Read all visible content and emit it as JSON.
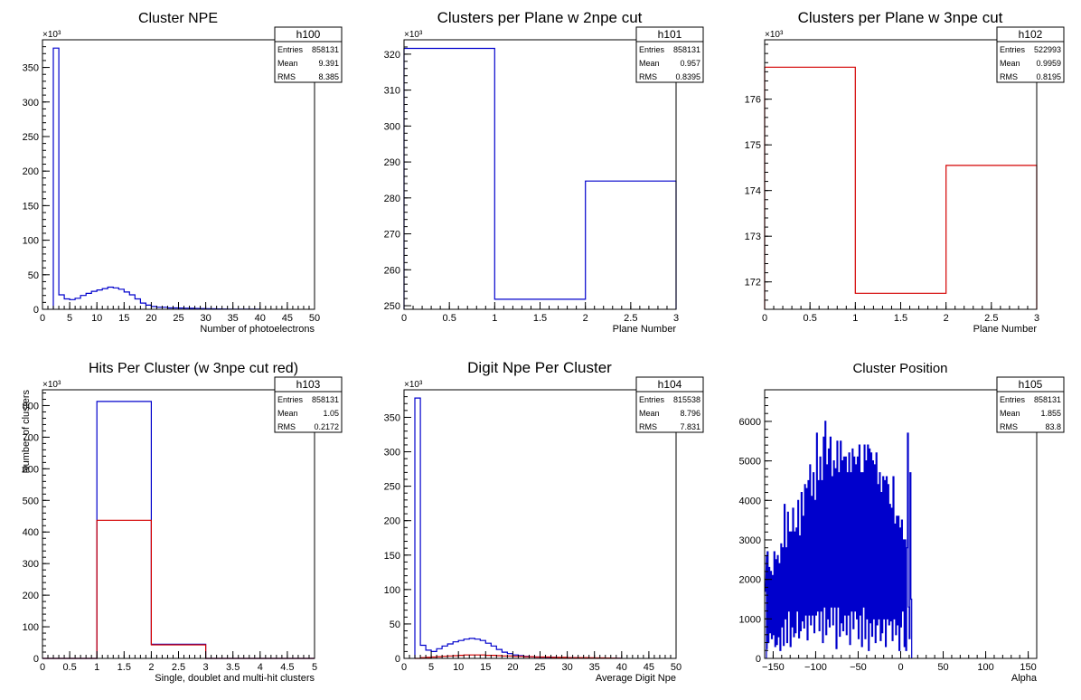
{
  "colors": {
    "primary": "#0000cc",
    "secondary": "#d40000",
    "frame": "#000000"
  },
  "chart_data": [
    {
      "type": "histogram",
      "title": "Cluster NPE",
      "xlabel": "Number of photoelectrons",
      "ylabel": "",
      "exponent_label": "×10³",
      "xlim": [
        0,
        50
      ],
      "ylim": [
        0,
        390
      ],
      "xticks": [
        "0",
        "5",
        "10",
        "15",
        "20",
        "25",
        "30",
        "35",
        "40",
        "45",
        "50"
      ],
      "yticks": [
        "0",
        "50",
        "100",
        "150",
        "200",
        "250",
        "300",
        "350"
      ],
      "stats": {
        "name": "h100",
        "rows": [
          [
            "Entries",
            "858131"
          ],
          [
            "Mean",
            "9.391"
          ],
          [
            "RMS",
            "8.385"
          ]
        ]
      },
      "series": [
        {
          "color": "primary",
          "bin_start": 2,
          "bin_width": 1,
          "values": [
            378,
            21,
            15,
            14,
            16,
            20,
            23,
            26,
            28,
            30,
            32,
            31,
            29,
            25,
            21,
            15,
            9,
            6,
            4,
            3,
            3,
            2,
            2,
            1.8,
            1.6,
            1.4,
            1.2,
            1,
            0.8,
            0.6,
            0.5,
            0.4,
            0.3,
            0.2,
            0.2,
            0.1,
            0.1,
            0.1
          ]
        }
      ]
    },
    {
      "type": "histogram",
      "title": "Clusters per Plane w 2npe cut",
      "xlabel": "Plane Number",
      "ylabel": "",
      "exponent_label": "×10³",
      "xlim": [
        0,
        3
      ],
      "ylim": [
        249,
        324
      ],
      "xticks": [
        "0",
        "0.5",
        "1",
        "1.5",
        "2",
        "2.5",
        "3"
      ],
      "yticks": [
        "250",
        "260",
        "270",
        "280",
        "290",
        "300",
        "310",
        "320"
      ],
      "stats": {
        "name": "h101",
        "rows": [
          [
            "Entries",
            "858131"
          ],
          [
            "Mean",
            "0.957"
          ],
          [
            "RMS",
            "0.8395"
          ]
        ]
      },
      "series": [
        {
          "color": "primary",
          "bin_start": 0,
          "bin_width": 1,
          "values": [
            321.6,
            251.8,
            284.7
          ]
        }
      ]
    },
    {
      "type": "histogram",
      "title": "Clusters per Plane w 3npe cut",
      "xlabel": "Plane Number",
      "ylabel": "",
      "exponent_label": "×10³",
      "xlim": [
        0,
        3
      ],
      "ylim": [
        171.4,
        177.3
      ],
      "xticks": [
        "0",
        "0.5",
        "1",
        "1.5",
        "2",
        "2.5",
        "3"
      ],
      "yticks": [
        "172",
        "173",
        "174",
        "175",
        "176"
      ],
      "stats": {
        "name": "h102",
        "rows": [
          [
            "Entries",
            "522993"
          ],
          [
            "Mean",
            "0.9959"
          ],
          [
            "RMS",
            "0.8195"
          ]
        ]
      },
      "series": [
        {
          "color": "secondary",
          "bin_start": 0,
          "bin_width": 1,
          "values": [
            176.7,
            171.75,
            174.55
          ]
        }
      ]
    },
    {
      "type": "histogram",
      "title": "Hits Per Cluster (w 3npe cut red)",
      "xlabel": "Single, doublet and multi-hit clusters",
      "ylabel": "Number of clusters",
      "exponent_label": "×10³",
      "xlim": [
        0,
        5
      ],
      "ylim": [
        0,
        850
      ],
      "xticks": [
        "0",
        "0.5",
        "1",
        "1.5",
        "2",
        "2.5",
        "3",
        "3.5",
        "4",
        "4.5",
        "5"
      ],
      "yticks": [
        "0",
        "100",
        "200",
        "300",
        "400",
        "500",
        "600",
        "700",
        "800"
      ],
      "stats": {
        "name": "h103",
        "rows": [
          [
            "Entries",
            "858131"
          ],
          [
            "Mean",
            "1.05"
          ],
          [
            "RMS",
            "0.2172"
          ]
        ]
      },
      "series": [
        {
          "color": "primary",
          "bin_start": 0,
          "bin_width": 1,
          "values": [
            0,
            813,
            45,
            0,
            0
          ]
        },
        {
          "color": "secondary",
          "bin_start": 0,
          "bin_width": 1,
          "values": [
            0,
            437,
            43,
            0,
            0
          ]
        }
      ]
    },
    {
      "type": "histogram",
      "title": "Digit Npe Per Cluster",
      "xlabel": "Average Digit Npe",
      "ylabel": "",
      "exponent_label": "×10³",
      "xlim": [
        0,
        50
      ],
      "ylim": [
        0,
        390
      ],
      "xticks": [
        "0",
        "5",
        "10",
        "15",
        "20",
        "25",
        "30",
        "35",
        "40",
        "45",
        "50"
      ],
      "yticks": [
        "0",
        "50",
        "100",
        "150",
        "200",
        "250",
        "300",
        "350"
      ],
      "stats": {
        "name": "h104",
        "rows": [
          [
            "Entries",
            "815538"
          ],
          [
            "Mean",
            "8.796"
          ],
          [
            "RMS",
            "7.831"
          ]
        ]
      },
      "series": [
        {
          "color": "primary",
          "bin_start": 2,
          "bin_width": 1,
          "values": [
            378,
            19,
            12,
            10,
            14,
            18,
            21,
            24,
            26,
            28,
            29,
            28,
            26,
            22,
            18,
            13,
            9,
            7,
            5,
            4,
            3,
            2.5,
            2,
            1.8,
            1.6,
            1.4,
            1.2,
            1,
            0.8,
            0.6,
            0.5,
            0.4,
            0.3,
            0.2,
            0.2,
            0.1,
            0.1,
            0.1
          ]
        },
        {
          "color": "secondary",
          "bin_start": 2,
          "bin_width": 1,
          "values": [
            0,
            1,
            1.5,
            2,
            2.5,
            3,
            3.5,
            4,
            4.5,
            5,
            5,
            5,
            5,
            4.5,
            4.5,
            4,
            3.5,
            3.5,
            3,
            3,
            2.5,
            2.5,
            2,
            2,
            2,
            1.5,
            1.5,
            1.5,
            1,
            1,
            1,
            1,
            0.8,
            0.7,
            0.6,
            0.5,
            0.4,
            0.3
          ]
        }
      ]
    },
    {
      "type": "histogram",
      "title": "Cluster Position",
      "xlabel": "Alpha",
      "ylabel": "",
      "exponent_label": "",
      "xlim": [
        -160,
        160
      ],
      "ylim": [
        0,
        6800
      ],
      "xticks": [
        "−150",
        "−100",
        "−50",
        "0",
        "50",
        "100",
        "150"
      ],
      "xtick_values": [
        -150,
        -100,
        -50,
        0,
        50,
        100,
        150
      ],
      "yticks": [
        "0",
        "1000",
        "2000",
        "3000",
        "4000",
        "5000",
        "6000"
      ],
      "stats": {
        "name": "h105",
        "rows": [
          [
            "Entries",
            "858131"
          ],
          [
            "Mean",
            "1.855"
          ],
          [
            "RMS",
            "83.8"
          ]
        ]
      },
      "series": [
        {
          "color": "primary",
          "bin_start": -160,
          "bin_width": 1,
          "values": [
            1700,
            2600,
            250,
            2700,
            400,
            2300,
            650,
            2200,
            500,
            2100,
            600,
            2700,
            300,
            2500,
            350,
            2600,
            550,
            2400,
            200,
            2900,
            800,
            2800,
            330,
            3900,
            1000,
            2800,
            400,
            3700,
            1200,
            3200,
            300,
            3200,
            800,
            3800,
            550,
            3200,
            650,
            3300,
            1200,
            4000,
            520,
            3100,
            700,
            4200,
            950,
            3600,
            770,
            4400,
            1100,
            4300,
            470,
            4500,
            1100,
            4900,
            850,
            4100,
            1100,
            4700,
            650,
            4000,
            1100,
            5700,
            1200,
            4500,
            700,
            5100,
            1200,
            4500,
            400,
            5600,
            1300,
            6000,
            600,
            4900,
            1000,
            5300,
            800,
            5600,
            1300,
            4600,
            850,
            5000,
            1300,
            4800,
            250,
            5500,
            1300,
            4700,
            560,
            5500,
            900,
            5000,
            700,
            5100,
            1100,
            5100,
            600,
            4700,
            1100,
            5200,
            350,
            4700,
            1200,
            5300,
            750,
            5100,
            1200,
            4900,
            1000,
            5100,
            500,
            5400,
            1100,
            4700,
            300,
            4700,
            1300,
            5400,
            500,
            5000,
            1000,
            5400,
            200,
            5300,
            900,
            5200,
            560,
            5000,
            1000,
            4900,
            400,
            5200,
            850,
            4400,
            1000,
            4700,
            450,
            4200,
            650,
            4600,
            1000,
            4500,
            300,
            4600,
            1000,
            4400,
            850,
            3900,
            950,
            3800,
            450,
            4600,
            1000,
            3400,
            600,
            3600,
            850,
            3600,
            200,
            3300,
            800,
            3500,
            1200,
            3000,
            300,
            3000,
            200,
            2800,
            5700,
            1300,
            500,
            4700,
            1500
          ]
        }
      ]
    }
  ]
}
